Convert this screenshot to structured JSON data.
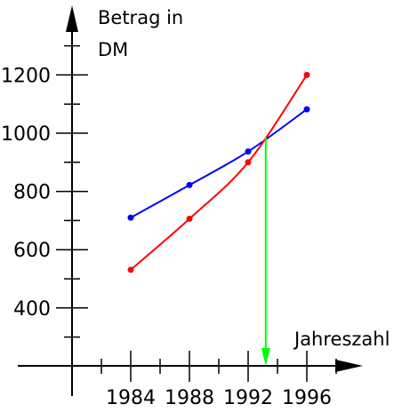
{
  "chart_data": {
    "type": "line",
    "ylabel_line1": "Betrag in",
    "ylabel_line2": "DM",
    "xlabel": "Jahreszahl",
    "x": [
      1984,
      1988,
      1992,
      1996
    ],
    "x_ticks": [
      "1984",
      "1988",
      "1992",
      "1996"
    ],
    "y_ticks": [
      "400",
      "600",
      "800",
      "1000",
      "1200"
    ],
    "y_tick_values": [
      400,
      600,
      800,
      1000,
      1200
    ],
    "series": [
      {
        "color": "#0000ff",
        "values": [
          710,
          822,
          937,
          1082
        ]
      },
      {
        "color": "#ff0000",
        "values": [
          531,
          706,
          900,
          1200
        ]
      }
    ],
    "intersection": {
      "x": 1993.2,
      "y": 985,
      "color": "#00ff00"
    },
    "axis_color": "#000000"
  }
}
